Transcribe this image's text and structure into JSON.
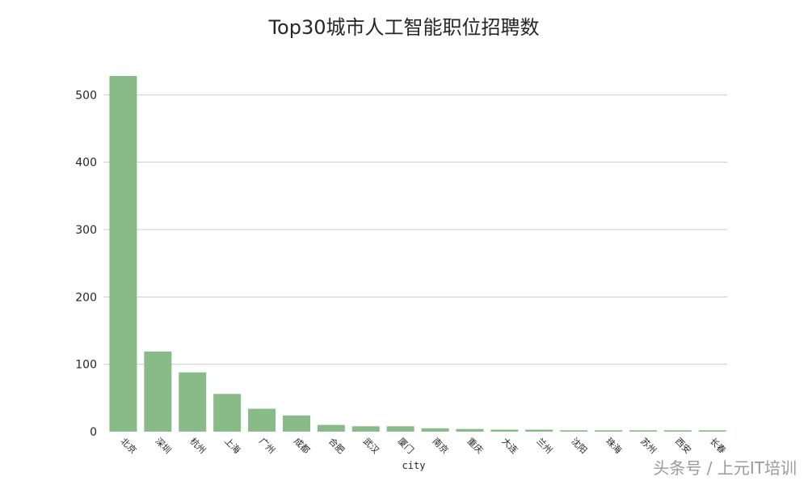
{
  "chart_data": {
    "type": "bar",
    "title": "Top30城市人工智能职位招聘数",
    "xlabel": "city",
    "ylabel": "",
    "categories": [
      "北京",
      "深圳",
      "杭州",
      "上海",
      "广州",
      "成都",
      "合肥",
      "武汉",
      "厦门",
      "南京",
      "重庆",
      "大连",
      "兰州",
      "沈阳",
      "珠海",
      "苏州",
      "西安",
      "长春"
    ],
    "values": [
      528,
      119,
      88,
      56,
      34,
      24,
      10,
      8,
      8,
      5,
      4,
      3,
      3,
      2,
      2,
      2,
      2,
      2
    ],
    "ylim": [
      0,
      540
    ],
    "yticks": [
      0,
      100,
      200,
      300,
      400,
      500
    ],
    "grid": true,
    "bar_color": "#88bb88"
  },
  "watermark": "头条号 / 上元IT培训"
}
